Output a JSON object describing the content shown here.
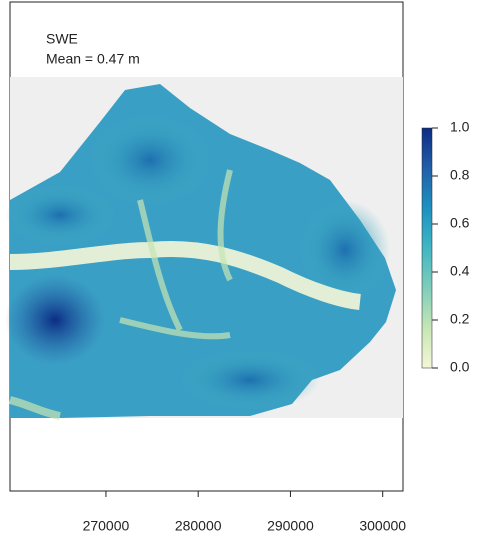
{
  "chart_data": {
    "type": "raster",
    "title": "SWE",
    "annotation": "Mean = 0.47 m",
    "xlim": [
      259600,
      302200
    ],
    "xticks": [
      270000,
      280000,
      290000,
      300000
    ],
    "colorbar": {
      "lim": [
        0,
        1
      ],
      "ticks": [
        {
          "value": 0,
          "label": "0.0"
        },
        0.2,
        0.4,
        0.6,
        0.8,
        {
          "value": 1,
          "label": "1.0"
        }
      ],
      "colors": [
        "#f5f7d8",
        "#c6e6b4",
        "#7fcdbb",
        "#41b6c4",
        "#1d91c0",
        "#225ea8",
        "#0c2c84"
      ]
    }
  }
}
